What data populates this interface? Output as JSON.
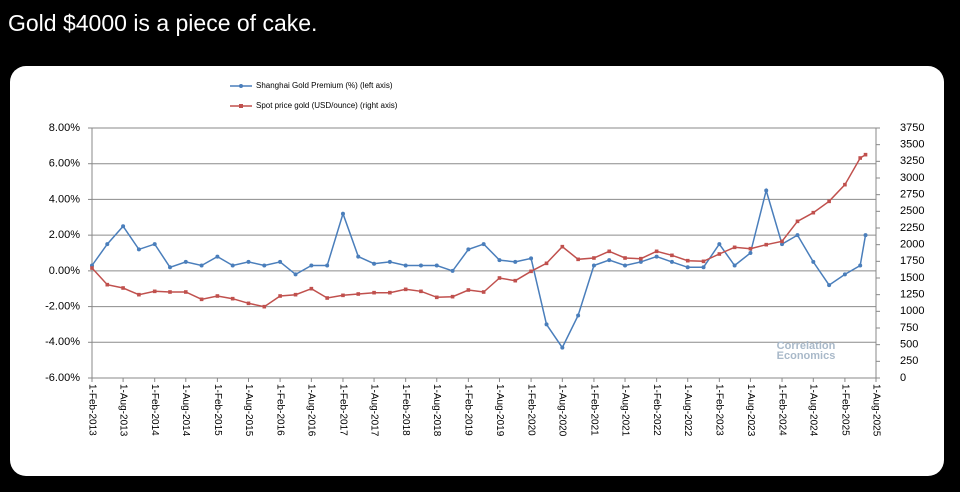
{
  "post": {
    "text": "Gold $4000 is a piece of cake."
  },
  "chart_data": {
    "type": "line",
    "watermark": [
      "Correlation",
      "Economics"
    ],
    "x": [
      "2013-02-01",
      "2013-05-01",
      "2013-08-01",
      "2013-11-01",
      "2014-02-01",
      "2014-05-01",
      "2014-08-01",
      "2014-11-01",
      "2015-02-01",
      "2015-05-01",
      "2015-08-01",
      "2015-11-01",
      "2016-02-01",
      "2016-05-01",
      "2016-08-01",
      "2016-11-01",
      "2017-02-01",
      "2017-05-01",
      "2017-08-01",
      "2017-11-01",
      "2018-02-01",
      "2018-05-01",
      "2018-08-01",
      "2018-11-01",
      "2019-02-01",
      "2019-05-01",
      "2019-08-01",
      "2019-11-01",
      "2020-02-01",
      "2020-05-01",
      "2020-08-01",
      "2020-11-01",
      "2021-02-01",
      "2021-05-01",
      "2021-08-01",
      "2021-11-01",
      "2022-02-01",
      "2022-05-01",
      "2022-08-01",
      "2022-11-01",
      "2023-02-01",
      "2023-05-01",
      "2023-08-01",
      "2023-11-01",
      "2024-02-01",
      "2024-05-01",
      "2024-08-01",
      "2024-11-01",
      "2025-02-01",
      "2025-05-01",
      "2025-06-01"
    ],
    "series": [
      {
        "name": "Shanghai Gold Premium (%) (left axis)",
        "color": "#4a7ebb",
        "axis": "y",
        "values": [
          0.3,
          1.5,
          2.5,
          1.2,
          1.5,
          0.2,
          0.5,
          0.3,
          0.8,
          0.3,
          0.5,
          0.3,
          0.5,
          -0.2,
          0.3,
          0.3,
          3.2,
          0.8,
          0.4,
          0.5,
          0.3,
          0.3,
          0.3,
          0.0,
          1.2,
          1.5,
          0.6,
          0.5,
          0.7,
          -3.0,
          -4.3,
          -2.5,
          0.3,
          0.6,
          0.3,
          0.5,
          0.8,
          0.5,
          0.2,
          0.2,
          1.5,
          0.3,
          1.0,
          4.5,
          1.5,
          2.0,
          0.5,
          -0.8,
          -0.2,
          0.3,
          2.0
        ]
      },
      {
        "name": "Spot price gold (USD/ounce) (right axis)",
        "color": "#c0504d",
        "axis": "y2",
        "values": [
          1650,
          1400,
          1350,
          1250,
          1300,
          1290,
          1290,
          1180,
          1230,
          1190,
          1120,
          1070,
          1230,
          1250,
          1340,
          1200,
          1240,
          1260,
          1280,
          1280,
          1330,
          1300,
          1210,
          1220,
          1320,
          1290,
          1500,
          1460,
          1600,
          1720,
          1970,
          1780,
          1800,
          1900,
          1800,
          1790,
          1900,
          1840,
          1760,
          1750,
          1860,
          1960,
          1940,
          2000,
          2050,
          2350,
          2480,
          2650,
          2900,
          3300,
          3350
        ]
      }
    ],
    "xlim": [
      "2013-02-01",
      "2025-08-01"
    ],
    "xticks": [
      {
        "value": "2013-02-01",
        "label": "1-Feb-2013"
      },
      {
        "value": "2013-08-01",
        "label": "1-Aug-2013"
      },
      {
        "value": "2014-02-01",
        "label": "1-Feb-2014"
      },
      {
        "value": "2014-08-01",
        "label": "1-Aug-2014"
      },
      {
        "value": "2015-02-01",
        "label": "1-Feb-2015"
      },
      {
        "value": "2015-08-01",
        "label": "1-Aug-2015"
      },
      {
        "value": "2016-02-01",
        "label": "1-Feb-2016"
      },
      {
        "value": "2016-08-01",
        "label": "1-Aug-2016"
      },
      {
        "value": "2017-02-01",
        "label": "1-Feb-2017"
      },
      {
        "value": "2017-08-01",
        "label": "1-Aug-2017"
      },
      {
        "value": "2018-02-01",
        "label": "1-Feb-2018"
      },
      {
        "value": "2018-08-01",
        "label": "1-Aug-2018"
      },
      {
        "value": "2019-02-01",
        "label": "1-Feb-2019"
      },
      {
        "value": "2019-08-01",
        "label": "1-Aug-2019"
      },
      {
        "value": "2020-02-01",
        "label": "1-Feb-2020"
      },
      {
        "value": "2020-08-01",
        "label": "1-Aug-2020"
      },
      {
        "value": "2021-02-01",
        "label": "1-Feb-2021"
      },
      {
        "value": "2021-08-01",
        "label": "1-Aug-2021"
      },
      {
        "value": "2022-02-01",
        "label": "1-Feb-2022"
      },
      {
        "value": "2022-08-01",
        "label": "1-Aug-2022"
      },
      {
        "value": "2023-02-01",
        "label": "1-Feb-2023"
      },
      {
        "value": "2023-08-01",
        "label": "1-Aug-2023"
      },
      {
        "value": "2024-02-01",
        "label": "1-Feb-2024"
      },
      {
        "value": "2024-08-01",
        "label": "1-Aug-2024"
      },
      {
        "value": "2025-02-01",
        "label": "1-Feb-2025"
      },
      {
        "value": "2025-08-01",
        "label": "1-Aug-2025"
      }
    ],
    "ylim": [
      -6,
      8
    ],
    "yticks": [
      {
        "value": -6,
        "label": "-6.00%"
      },
      {
        "value": -4,
        "label": "-4.00%"
      },
      {
        "value": -2,
        "label": "-2.00%"
      },
      {
        "value": 0,
        "label": "0.00%"
      },
      {
        "value": 2,
        "label": "2.00%"
      },
      {
        "value": 4,
        "label": "4.00%"
      },
      {
        "value": 6,
        "label": "6.00%"
      },
      {
        "value": 8,
        "label": "8.00%"
      }
    ],
    "y2lim": [
      0,
      3750
    ],
    "y2ticks": [
      0,
      250,
      500,
      750,
      1000,
      1250,
      1500,
      1750,
      2000,
      2250,
      2500,
      2750,
      3000,
      3250,
      3500,
      3750
    ],
    "grid": true
  }
}
